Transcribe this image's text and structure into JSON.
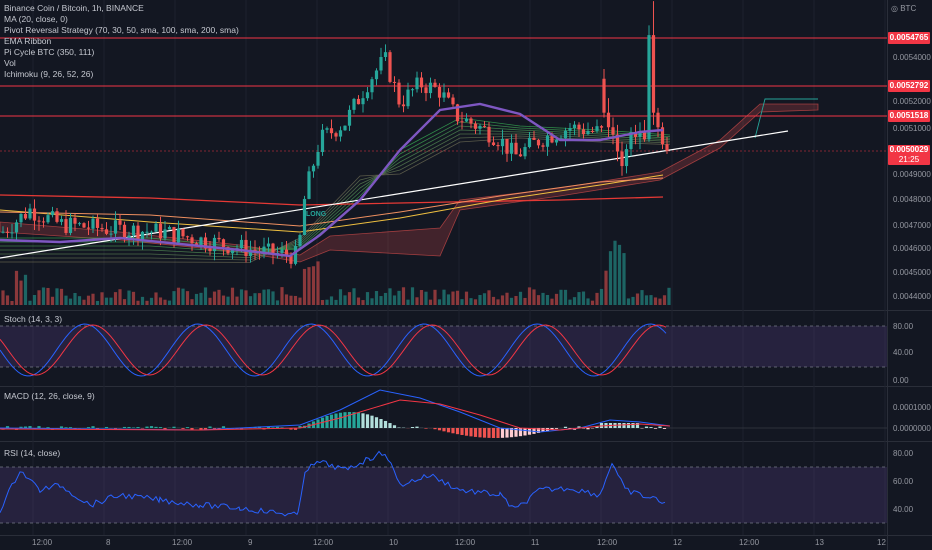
{
  "header": {
    "symbol_line": "Binance Coin / Bitcoin, 1h, BINANCE",
    "quote_currency": "BTC",
    "indicators": [
      "MA (20, close, 0)",
      "Pivot Reversal Strategy (70, 30, 50, sma, 100, sma, 200, sma)",
      "EMA Ribbon",
      "Pi Cycle BTC (350, 111)",
      "Vol",
      "Ichimoku (9, 26, 52, 26)"
    ]
  },
  "price_axis": {
    "labels": [
      "0.0054000",
      "0.0052000",
      "0.0051000",
      "0.0049000",
      "0.0048000",
      "0.0047000",
      "0.0046000",
      "0.0045000",
      "0.0044000"
    ],
    "highlighted": [
      {
        "value": "0.0054765",
        "color": "#f23645"
      },
      {
        "value": "0.0052792",
        "color": "#f23645"
      },
      {
        "value": "0.0051518",
        "color": "#f23645"
      }
    ],
    "current_price": {
      "value": "0.0050029",
      "countdown": "21:25",
      "color": "#f23645"
    }
  },
  "time_axis": [
    "12:00",
    "8",
    "12:00",
    "9",
    "12:00",
    "10",
    "12:00",
    "11",
    "12:00",
    "12",
    "12:00",
    "13",
    "12"
  ],
  "signal_label": "LONG",
  "stoch": {
    "title": "Stoch (14, 3, 3)",
    "axis_labels": [
      "80.00",
      "40.00",
      "0.00"
    ],
    "k_color": "#2962ff",
    "d_color": "#f23645",
    "band_color": "#7e57c2"
  },
  "macd": {
    "title": "MACD (12, 26, close, 9)",
    "axis_labels": [
      "0.0001000",
      "0.0000000"
    ],
    "macd_color": "#2962ff",
    "signal_color": "#f23645"
  },
  "rsi": {
    "title": "RSI (14, close)",
    "axis_labels": [
      "80.00",
      "60.00",
      "40.00"
    ],
    "line_color": "#2962ff",
    "band_color": "#7e57c2"
  },
  "colors": {
    "up": "#26a69a",
    "down": "#ef5350",
    "highlight_up": "#f5f5a0",
    "highlight_down": "#ef5350",
    "ma20": "#7e57c2",
    "trendline": "#ffffff",
    "sma200": "#e53935",
    "horizontal": "#f23645"
  },
  "chart_data": {
    "type": "candlestick",
    "interval": "1h",
    "ohlc": [
      [
        0.00462,
        0.00479,
        0.00458,
        0.00475
      ],
      [
        0.00475,
        0.00481,
        0.00469,
        0.00472
      ],
      [
        0.00472,
        0.00478,
        0.00466,
        0.0047
      ],
      [
        0.0047,
        0.00476,
        0.00464,
        0.00469
      ],
      [
        0.00469,
        0.00473,
        0.00462,
        0.00465
      ],
      [
        0.00465,
        0.00472,
        0.00461,
        0.00469
      ],
      [
        0.00469,
        0.00474,
        0.00465,
        0.0047
      ],
      [
        0.0047,
        0.00472,
        0.00462,
        0.00464
      ],
      [
        0.00464,
        0.00469,
        0.00458,
        0.00461
      ],
      [
        0.00461,
        0.00466,
        0.00456,
        0.0046
      ],
      [
        0.0046,
        0.00464,
        0.00452,
        0.00454
      ],
      [
        0.00454,
        0.00462,
        0.0045,
        0.00458
      ],
      [
        0.00458,
        0.00488,
        0.00456,
        0.00485
      ],
      [
        0.00485,
        0.00506,
        0.00482,
        0.00503
      ],
      [
        0.00503,
        0.00512,
        0.00498,
        0.00508
      ],
      [
        0.00508,
        0.00518,
        0.00502,
        0.00515
      ],
      [
        0.00515,
        0.00548,
        0.0051,
        0.00544
      ],
      [
        0.00544,
        0.00552,
        0.00512,
        0.00518
      ],
      [
        0.00518,
        0.00526,
        0.00508,
        0.00514
      ],
      [
        0.00514,
        0.00533,
        0.00511,
        0.0053
      ],
      [
        0.0053,
        0.00534,
        0.00514,
        0.00516
      ],
      [
        0.00516,
        0.00522,
        0.00506,
        0.0051
      ],
      [
        0.0051,
        0.00514,
        0.00503,
        0.00507
      ],
      [
        0.00507,
        0.00511,
        0.00496,
        0.005
      ],
      [
        0.005,
        0.00504,
        0.0049,
        0.00494
      ],
      [
        0.00494,
        0.00503,
        0.00491,
        0.00501
      ],
      [
        0.00501,
        0.0051,
        0.00498,
        0.00508
      ],
      [
        0.00508,
        0.00511,
        0.00503,
        0.00506
      ],
      [
        0.00506,
        0.00512,
        0.00501,
        0.00508
      ],
      [
        0.00508,
        0.00513,
        0.00504,
        0.00505
      ],
      [
        0.00505,
        0.00552,
        0.00504,
        0.00548
      ],
      [
        0.00548,
        0.00562,
        0.00511,
        0.00516
      ],
      [
        0.00516,
        0.00518,
        0.00506,
        0.0051
      ],
      [
        0.0051,
        0.00512,
        0.00501,
        0.00503
      ],
      [
        0.00503,
        0.00506,
        0.00499,
        0.005003
      ]
    ]
  }
}
